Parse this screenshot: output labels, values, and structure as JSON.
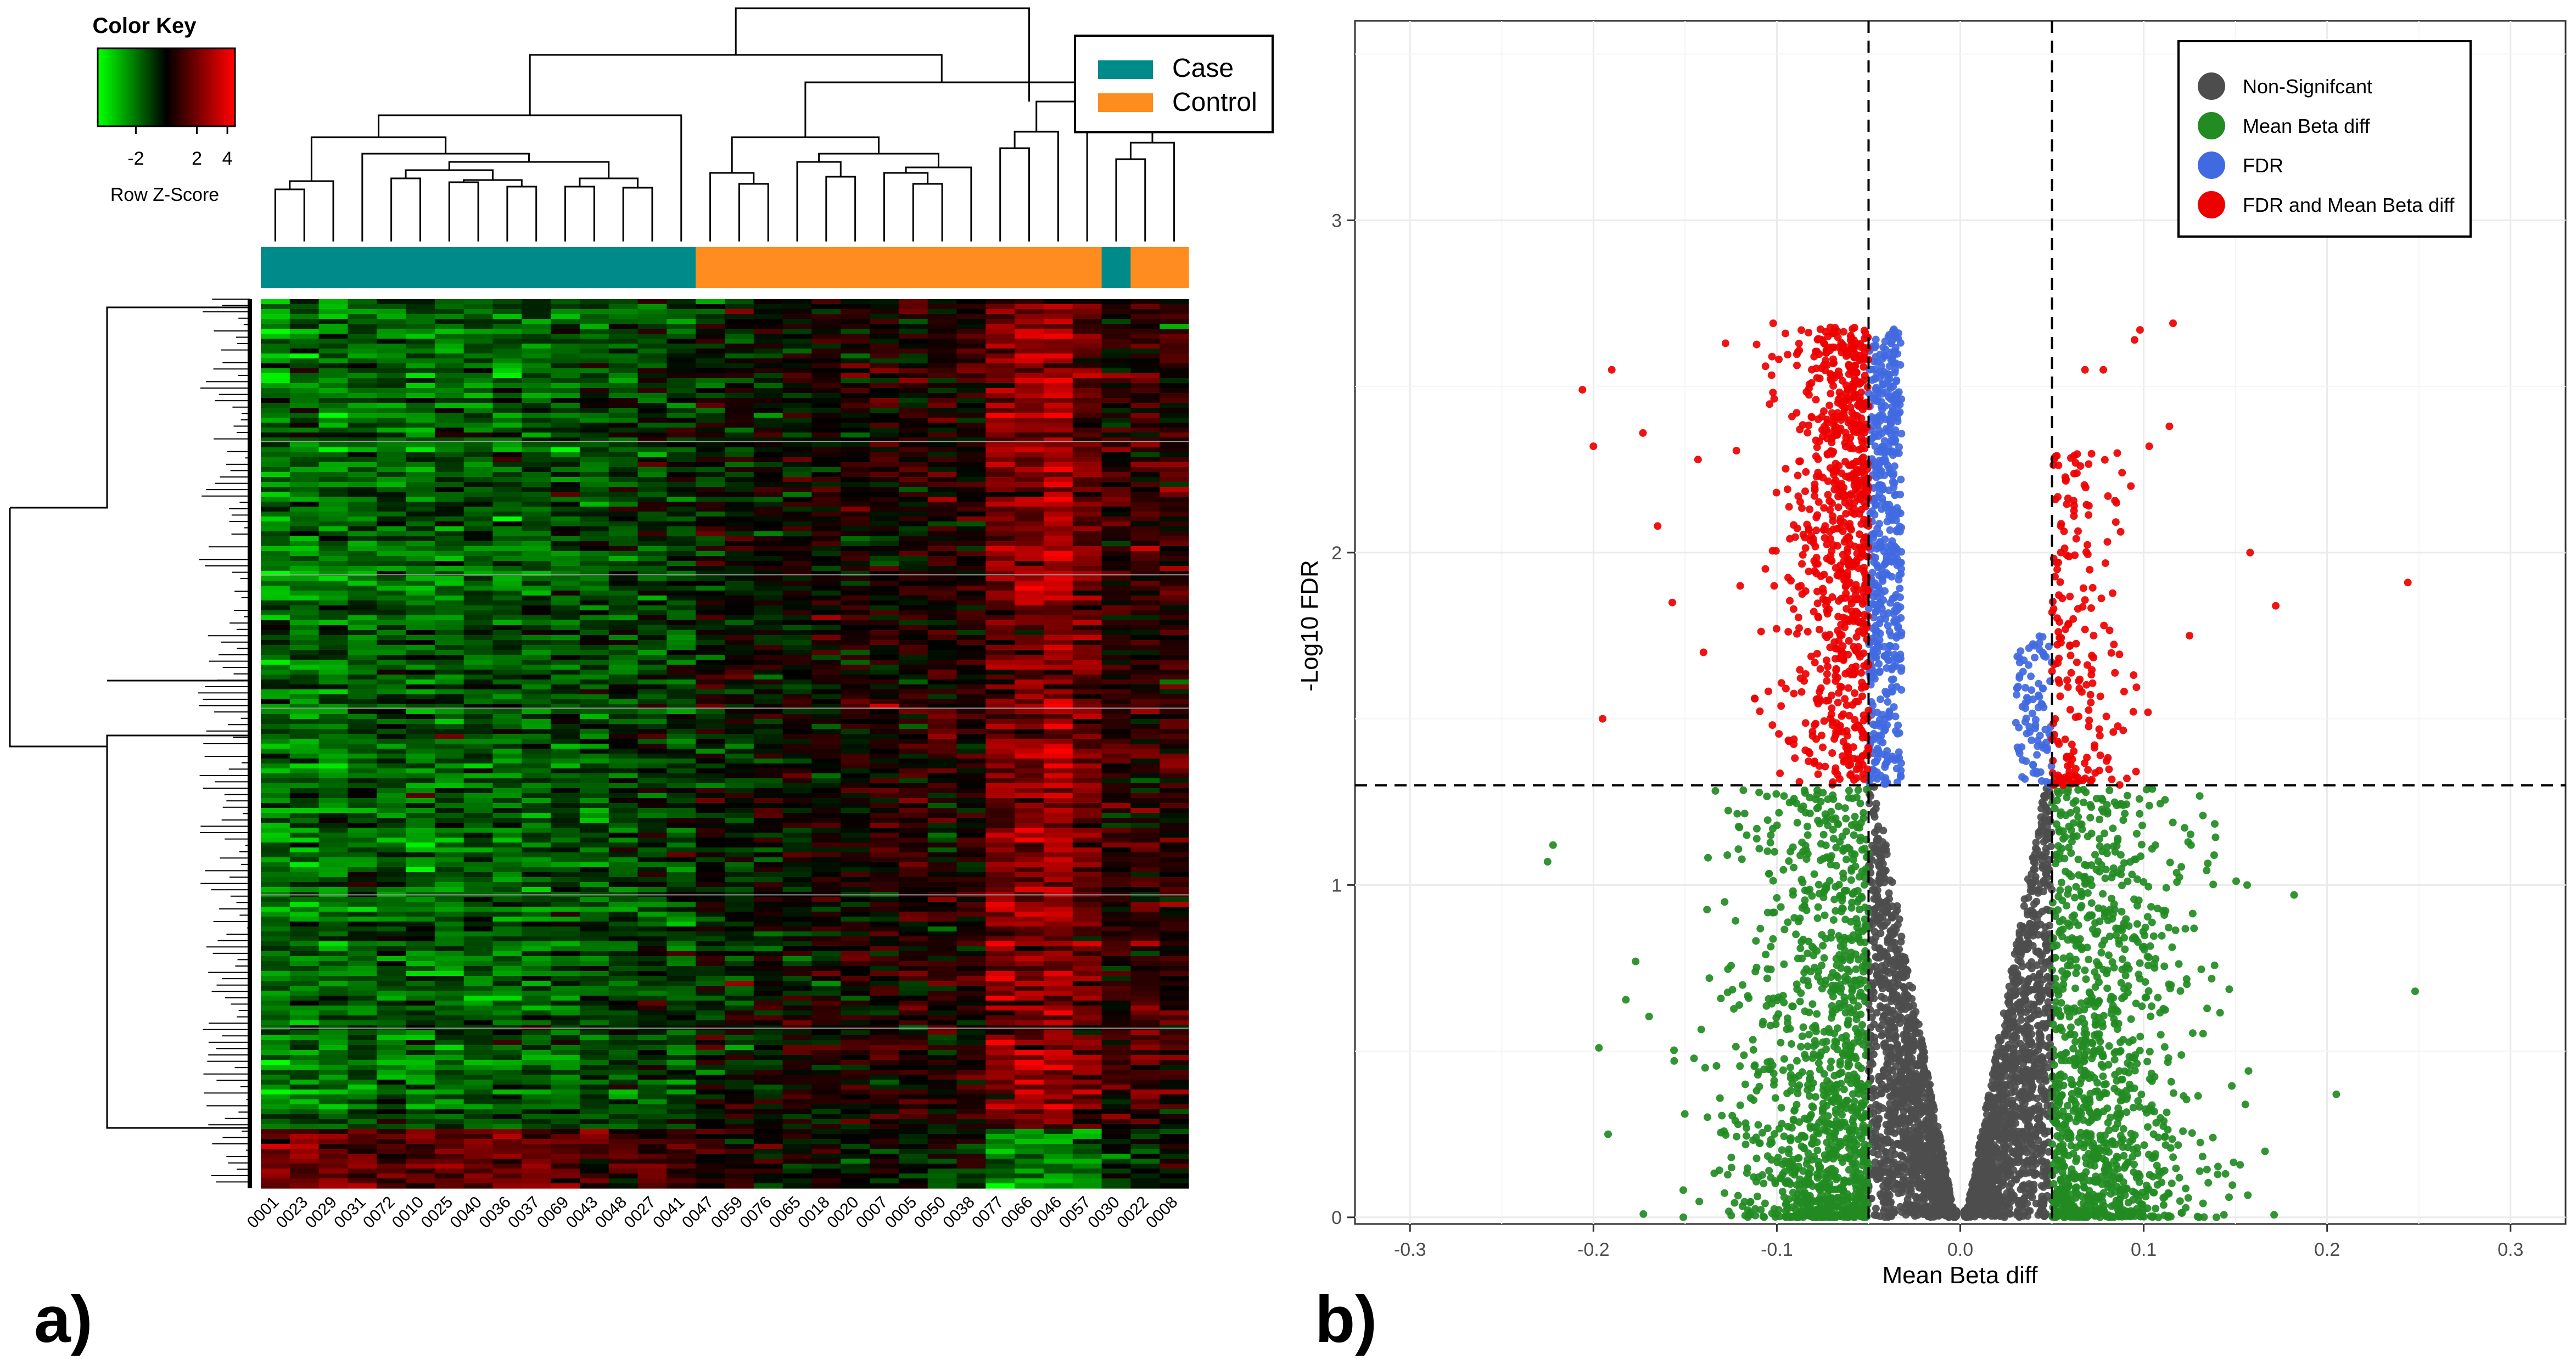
{
  "panels": {
    "a_label": "a)",
    "b_label": "b)"
  },
  "color_key": {
    "title": "Color Key",
    "ticks": [
      "-2",
      "2",
      "4"
    ],
    "tick_values": [
      -2,
      2,
      4
    ],
    "range": [
      -4.5,
      4.5
    ],
    "xlabel": "Row Z-Score"
  },
  "legend_a": {
    "items": [
      {
        "label": "Case",
        "color": "#008b8b"
      },
      {
        "label": "Control",
        "color": "#ff8c1f"
      }
    ]
  },
  "colors": {
    "case": "#008b8b",
    "control": "#ff8c1f",
    "heat_low": "#00ff00",
    "heat_mid": "#000000",
    "heat_high": "#ff0000",
    "nonsig": "#4d4d4d",
    "mean_beta": "#228b22",
    "fdr": "#4169e1",
    "fdr_and_mean": "#ee0000"
  },
  "chart_data": [
    {
      "type": "heatmap",
      "title": "",
      "samples": [
        "0001",
        "0023",
        "0029",
        "0031",
        "0072",
        "0010",
        "0025",
        "0040",
        "0036",
        "0037",
        "0069",
        "0043",
        "0048",
        "0027",
        "0041",
        "0047",
        "0059",
        "0076",
        "0065",
        "0018",
        "0020",
        "0007",
        "0005",
        "0050",
        "0038",
        "0077",
        "0066",
        "0046",
        "0057",
        "0030",
        "0022",
        "0008"
      ],
      "groups": [
        "Case",
        "Case",
        "Case",
        "Case",
        "Case",
        "Case",
        "Case",
        "Case",
        "Case",
        "Case",
        "Case",
        "Case",
        "Case",
        "Case",
        "Case",
        "Control",
        "Control",
        "Control",
        "Control",
        "Control",
        "Control",
        "Control",
        "Control",
        "Control",
        "Control",
        "Control",
        "Control",
        "Control",
        "Control",
        "Case",
        "Control",
        "Control"
      ],
      "column_mean_zscore": [
        -1.6,
        -1.5,
        -1.6,
        -1.2,
        -1.3,
        -1.4,
        -1.3,
        -1.2,
        -1.4,
        -1.2,
        -1.1,
        -1.0,
        -0.9,
        -0.8,
        -0.7,
        -0.3,
        -0.2,
        -0.1,
        0.0,
        0.1,
        0.2,
        0.2,
        0.3,
        0.3,
        0.4,
        1.6,
        1.9,
        2.2,
        1.5,
        0.5,
        0.6,
        0.6
      ],
      "scale": {
        "min": -4.5,
        "max": 4.5,
        "label": "Row Z-Score"
      }
    },
    {
      "type": "scatter",
      "title": "",
      "xlabel": "Mean Beta diff",
      "ylabel": "-Log10 FDR",
      "xlim": [
        -0.33,
        0.33
      ],
      "ylim": [
        -0.02,
        3.6
      ],
      "x_ticks": [
        "-0.3",
        "-0.2",
        "-0.1",
        "0.0",
        "0.1",
        "0.2",
        "0.3"
      ],
      "x_tick_values": [
        -0.3,
        -0.2,
        -0.1,
        0.0,
        0.1,
        0.2,
        0.3
      ],
      "y_ticks": [
        "0",
        "1",
        "2",
        "3"
      ],
      "y_tick_values": [
        0,
        1,
        2,
        3
      ],
      "thresholds": {
        "mean_beta_diff": [
          -0.05,
          0.05
        ],
        "neg_log10_fdr": 1.3
      },
      "legend": [
        {
          "label": "Non-Signifcant",
          "color": "#4d4d4d"
        },
        {
          "label": "Mean Beta diff",
          "color": "#228b22"
        },
        {
          "label": "FDR",
          "color": "#4169e1"
        },
        {
          "label": "FDR and Mean Beta diff",
          "color": "#ee0000"
        }
      ],
      "highlight_points": [
        {
          "x": -0.206,
          "y": 2.49
        },
        {
          "x": -0.2,
          "y": 2.32
        },
        {
          "x": -0.19,
          "y": 2.55
        },
        {
          "x": -0.173,
          "y": 2.36
        },
        {
          "x": -0.165,
          "y": 2.08
        },
        {
          "x": -0.143,
          "y": 2.28
        },
        {
          "x": -0.14,
          "y": 1.7
        },
        {
          "x": -0.128,
          "y": 2.63
        },
        {
          "x": -0.12,
          "y": 1.9
        },
        {
          "x": -0.102,
          "y": 2.69
        },
        {
          "x": -0.195,
          "y": 1.5
        },
        {
          "x": -0.157,
          "y": 1.85
        },
        {
          "x": 0.116,
          "y": 2.69
        },
        {
          "x": 0.098,
          "y": 2.67
        },
        {
          "x": 0.095,
          "y": 2.64
        },
        {
          "x": 0.078,
          "y": 2.55
        },
        {
          "x": 0.068,
          "y": 2.55
        },
        {
          "x": 0.114,
          "y": 2.38
        },
        {
          "x": 0.103,
          "y": 2.32
        },
        {
          "x": 0.093,
          "y": 2.2
        },
        {
          "x": 0.158,
          "y": 2.0
        },
        {
          "x": 0.172,
          "y": 1.84
        },
        {
          "x": 0.244,
          "y": 1.91
        },
        {
          "x": 0.125,
          "y": 1.75
        },
        {
          "x": -0.225,
          "y": 1.07
        },
        {
          "x": -0.222,
          "y": 1.12
        },
        {
          "x": 0.248,
          "y": 0.68
        },
        {
          "x": 0.205,
          "y": 0.37
        },
        {
          "x": 0.182,
          "y": 0.97
        },
        {
          "x": -0.197,
          "y": 0.51
        },
        {
          "x": -0.192,
          "y": 0.25
        },
        {
          "x": -0.177,
          "y": 0.77
        }
      ],
      "density": {
        "nonsig_count": 2600,
        "mean_beta_count": 2300,
        "fdr_count": 600,
        "fdr_and_mean_count": 1000
      }
    }
  ]
}
